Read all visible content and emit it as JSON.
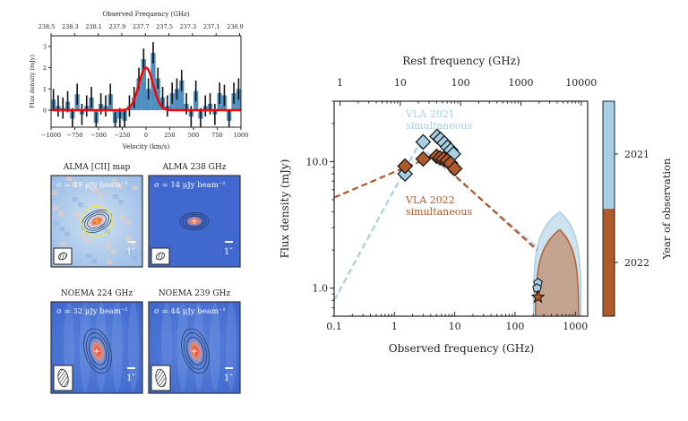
{
  "colors": {
    "c2021": "#a6cfe3",
    "c2022": "#b0592a",
    "spectrum_bar": "#2f7bb5",
    "fit": "#ff0000"
  },
  "chart_data": [
    {
      "type": "bar",
      "xlabel": "Velocity (km/s)",
      "ylabel": "Flux density (mJy)",
      "top_xlabel": "Observed Frequency (GHz)",
      "xlim": [
        -1000,
        1000
      ],
      "ylim": [
        -0.8,
        3.5
      ],
      "xticks": [
        -1000,
        -750,
        -500,
        -250,
        0,
        250,
        500,
        750,
        1000
      ],
      "yticks": [
        0,
        1,
        2,
        3
      ],
      "top_ticks": [
        "238.5",
        "238.3",
        "238.1",
        "237.9",
        "237.7",
        "237.5",
        "237.3",
        "237.1",
        "236.9"
      ],
      "bin_width": 50,
      "bin_centers": [
        -975,
        -925,
        -875,
        -825,
        -775,
        -725,
        -675,
        -625,
        -575,
        -525,
        -475,
        -425,
        -375,
        -325,
        -275,
        -225,
        -175,
        -125,
        -75,
        -25,
        25,
        75,
        125,
        175,
        225,
        275,
        325,
        375,
        425,
        475,
        525,
        575,
        625,
        675,
        725,
        775,
        825,
        875,
        925,
        975
      ],
      "values": [
        0.5,
        0.2,
        0.1,
        0.4,
        -0.4,
        0.75,
        -0.2,
        0.2,
        0.6,
        -0.6,
        0.3,
        0.2,
        0.75,
        -0.6,
        -0.4,
        -0.5,
        0.2,
        0.6,
        1.5,
        2.4,
        1.0,
        2.7,
        1.5,
        0.6,
        0.2,
        0.8,
        1.0,
        1.4,
        0.3,
        -0.3,
        0.9,
        -0.4,
        0.2,
        0.3,
        -0.2,
        0.8,
        0.7,
        -0.5,
        0.8,
        1.0
      ],
      "errors": 0.5,
      "fit": {
        "type": "gaussian",
        "amplitude": 2.0,
        "center": 0,
        "sigma": 75
      }
    },
    {
      "type": "scatter",
      "xlabel": "Observed frequency (GHz)",
      "ylabel": "Flux density (mJy)",
      "top_xlabel": "Rest frequency (GHz)",
      "xscale": "log",
      "yscale": "log",
      "xlim": [
        0.1,
        1600
      ],
      "ylim": [
        0.6,
        30
      ],
      "xticks": [
        0.1,
        1,
        10,
        100,
        1000
      ],
      "xtick_labels": [
        "0.1",
        "1",
        "10",
        "100",
        "1000"
      ],
      "yticks": [
        1,
        10
      ],
      "ytick_labels": [
        "1.0",
        "10.0"
      ],
      "top_ticks": [
        1,
        10,
        100,
        1000,
        10000
      ],
      "top_tick_labels": [
        "1",
        "10",
        "100",
        "1000",
        "10000"
      ],
      "rest_factor": 8.0,
      "annotations": [
        {
          "text": [
            "VLA 2021",
            "simultaneous"
          ],
          "series": "2021"
        },
        {
          "text": [
            "VLA 2022",
            "simultaneous"
          ],
          "series": "2022"
        }
      ],
      "series": [
        {
          "year": "2021",
          "marker": "diamond",
          "x": [
            1.5,
            3.0,
            5.1,
            5.8,
            6.7,
            7.6,
            8.6,
            9.5
          ],
          "y": [
            8.0,
            14.3,
            15.8,
            15.0,
            14.0,
            13.0,
            12.3,
            11.5
          ]
        },
        {
          "year": "2022",
          "marker": "diamond",
          "x": [
            1.5,
            3.0,
            5.0,
            5.7,
            6.5,
            7.5,
            8.5,
            10.0
          ],
          "y": [
            9.2,
            10.5,
            11.0,
            10.7,
            10.5,
            10.2,
            9.7,
            8.8
          ]
        },
        {
          "year": "2021",
          "marker": "pentagon",
          "x": [
            240,
            232
          ],
          "y": [
            1.1,
            1.0
          ]
        },
        {
          "year": "2022",
          "marker": "star",
          "x": [
            240
          ],
          "y": [
            0.85
          ]
        }
      ],
      "models": [
        {
          "year": "2021",
          "style": "dashed",
          "x": [
            0.1,
            2.5,
            230
          ],
          "y": [
            0.8,
            13.5,
            2.1
          ]
        },
        {
          "year": "2022",
          "style": "dashed",
          "x": [
            0.1,
            1.5,
            4.5,
            230
          ],
          "y": [
            5.2,
            9.0,
            11.0,
            2.0
          ]
        },
        {
          "year": "2021",
          "style": "filled-band",
          "peak_x": 550,
          "peak_y": 4.0,
          "x_zero": [
            200,
            1250
          ]
        },
        {
          "year": "2022",
          "style": "filled-curve",
          "peak_x": 550,
          "peak_y": 2.9,
          "x_zero": [
            215,
            1150
          ]
        }
      ],
      "colorbar": {
        "label": "Year of observation",
        "ticks": [
          "2021",
          "2022"
        ]
      }
    }
  ],
  "maps": [
    {
      "title": "ALMA [CII] map",
      "sigma": "σ = 49 μJy beam⁻¹",
      "scale": "1″"
    },
    {
      "title": "ALMA 238 GHz",
      "sigma": "σ = 14 μJy beam⁻¹",
      "scale": "1″"
    },
    {
      "title": "NOEMA 224 GHz",
      "sigma": "σ = 32 μJy beam⁻¹",
      "scale": "1″"
    },
    {
      "title": "NOEMA 239 GHz",
      "sigma": "σ = 44 μJy beam⁻¹",
      "scale": "1″"
    }
  ]
}
